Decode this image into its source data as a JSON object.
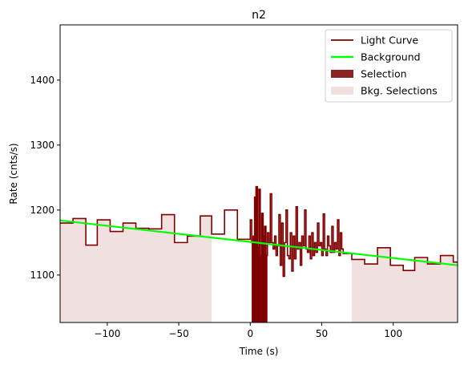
{
  "chart_data": {
    "type": "line",
    "title": "n2",
    "xlabel": "Time (s)",
    "ylabel": "Rate (cnts/s)",
    "xlim": [
      -133,
      145
    ],
    "ylim": [
      1027,
      1485
    ],
    "xticks": [
      -100,
      -50,
      0,
      50,
      100
    ],
    "yticks": [
      1100,
      1200,
      1300,
      1400
    ],
    "legend": {
      "placement": "top-right",
      "entries": [
        {
          "label": "Light Curve",
          "kind": "line",
          "color": "#800000"
        },
        {
          "label": "Background",
          "kind": "line",
          "color": "#00ff00"
        },
        {
          "label": "Selection",
          "kind": "patch",
          "color": "#8b2323"
        },
        {
          "label": "Bkg. Selections",
          "kind": "patch",
          "color": "#f0e0e0"
        }
      ]
    },
    "background": {
      "name": "Background",
      "color": "#00ff00",
      "x": [
        -133,
        145
      ],
      "y": [
        1184,
        1115
      ]
    },
    "selection": {
      "name": "Selection",
      "color": "#8b2323",
      "x_range": [
        1,
        12
      ]
    },
    "bkg_selections": {
      "name": "Bkg. Selections",
      "color": "#f0e0e0",
      "ranges": [
        [
          -133,
          -27
        ],
        [
          71,
          145
        ]
      ]
    },
    "light_curve": {
      "name": "Light Curve",
      "color": "#800000",
      "bin_edges": [
        -133,
        -124,
        -115,
        -107,
        -98,
        -89,
        -80,
        -71,
        -62,
        -53,
        -44,
        -35,
        -27,
        -18,
        -9,
        0,
        1,
        2,
        3,
        4,
        5,
        6,
        7,
        8,
        9,
        10,
        11,
        12,
        13,
        14,
        15,
        16,
        17,
        18,
        19,
        20,
        21,
        22,
        23,
        24,
        25,
        26,
        27,
        28,
        29,
        30,
        31,
        32,
        33,
        34,
        35,
        36,
        37,
        38,
        39,
        40,
        41,
        42,
        43,
        44,
        45,
        46,
        47,
        48,
        49,
        50,
        51,
        52,
        53,
        54,
        55,
        56,
        57,
        58,
        59,
        60,
        61,
        62,
        63,
        64,
        65,
        71,
        80,
        89,
        98,
        107,
        115,
        124,
        133,
        142,
        145
      ],
      "rates": [
        1180,
        1187,
        1146,
        1185,
        1167,
        1180,
        1172,
        1171,
        1193,
        1150,
        1160,
        1191,
        1163,
        1200,
        1155,
        1185,
        1150,
        1160,
        1220,
        1236,
        1143,
        1232,
        1130,
        1195,
        1160,
        1175,
        1130,
        1165,
        1150,
        1225,
        1150,
        1140,
        1160,
        1130,
        1145,
        1193,
        1115,
        1180,
        1098,
        1150,
        1200,
        1130,
        1125,
        1165,
        1106,
        1160,
        1125,
        1205,
        1140,
        1150,
        1115,
        1160,
        1145,
        1200,
        1140,
        1135,
        1160,
        1125,
        1165,
        1130,
        1150,
        1135,
        1180,
        1145,
        1150,
        1130,
        1194,
        1140,
        1130,
        1160,
        1145,
        1135,
        1175,
        1135,
        1150,
        1140,
        1185,
        1130,
        1165,
        1140,
        1133,
        1124,
        1117,
        1142,
        1115,
        1107,
        1127,
        1117,
        1130,
        1120
      ]
    }
  }
}
